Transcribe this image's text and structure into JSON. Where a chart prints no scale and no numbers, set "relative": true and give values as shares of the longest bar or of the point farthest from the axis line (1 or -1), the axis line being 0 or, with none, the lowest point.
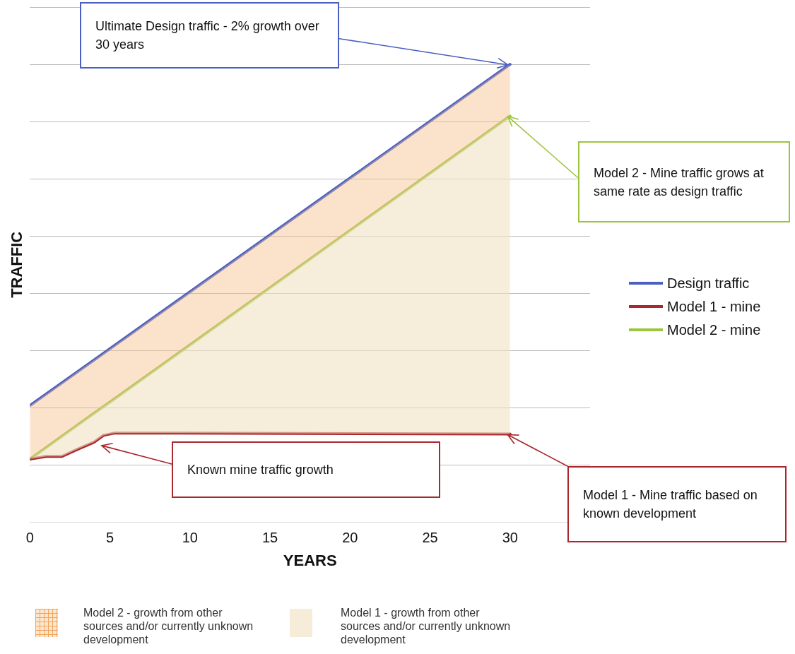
{
  "chart_data": {
    "type": "line",
    "relative": true,
    "xlabel": "YEARS",
    "ylabel": "TRAFFIC",
    "xlim": [
      0,
      35
    ],
    "xticks": [
      0,
      5,
      10,
      15,
      20,
      25,
      30
    ],
    "series": [
      {
        "name": "Design traffic",
        "color": "#4a5fc1",
        "x": [
          0,
          30
        ],
        "values": [
          0.255,
          1
        ],
        "lower": [
          0.138,
          0.887
        ],
        "upper": [
          0.255,
          1
        ]
      },
      {
        "name": "Model 1 - mine",
        "color": "#a8282e",
        "x": [
          0,
          1,
          2,
          3,
          4,
          4.6,
          5.3,
          30
        ],
        "values": [
          0.138,
          0.144,
          0.144,
          0.16,
          0.175,
          0.19,
          0.195,
          0.193
        ]
      },
      {
        "name": "Model 2 - mine",
        "color": "#9cc43c",
        "x": [
          0,
          1,
          2,
          3,
          4,
          4.6,
          5.3,
          30
        ],
        "values": [
          0.138,
          0.163,
          0.188,
          0.213,
          0.238,
          0.253,
          0.27,
          0.887
        ],
        "lower": [
          0.138,
          0.144,
          0.144,
          0.16,
          0.175,
          0.19,
          0.195,
          0.193
        ],
        "upper": [
          0.138,
          0.163,
          0.188,
          0.213,
          0.238,
          0.253,
          0.27,
          0.887
        ]
      }
    ],
    "annotations": [
      "Ultimate Design traffic  - 2% growth over 30 years",
      "Model 2 - Mine traffic grows at same rate as design traffic",
      "Known mine traffic growth",
      "Model 1 - Mine traffic based on known development",
      "Model 2 - growth from other sources and/or currently unknown development",
      "Model 1 - growth from other sources and/or currently unknown development"
    ],
    "grid": "y",
    "legend": "right",
    "marker": "none",
    "line_style": "solid"
  }
}
